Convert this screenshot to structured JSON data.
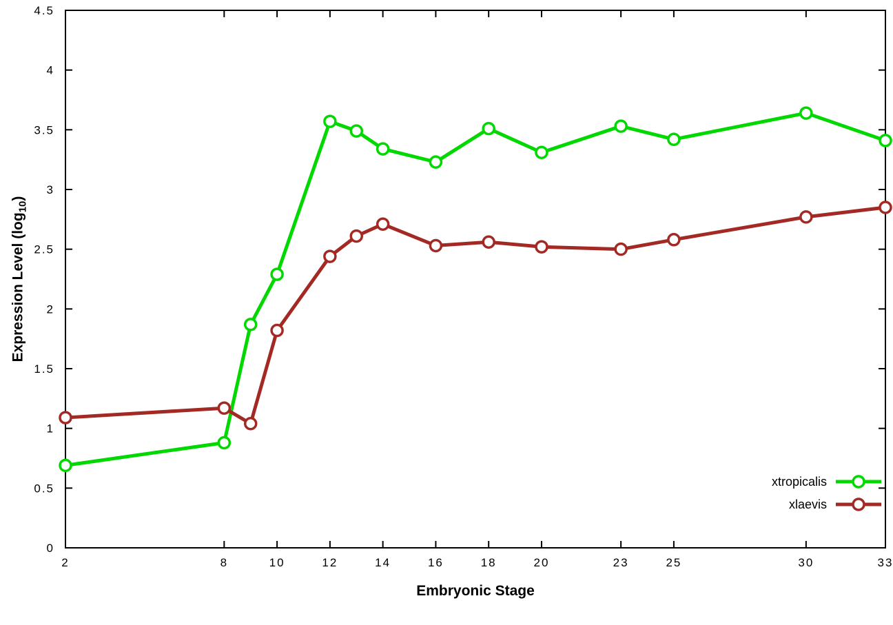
{
  "chart_data": {
    "type": "line",
    "title": "",
    "xlabel": "Embryonic Stage",
    "ylabel_main": "Expression Level (log",
    "ylabel_sub": "10",
    "ylabel_close": ")",
    "x": [
      2,
      8,
      9,
      10,
      12,
      13,
      14,
      16,
      18,
      20,
      23,
      25,
      30,
      33
    ],
    "series": [
      {
        "name": "xtropicalis",
        "color": "#00d800",
        "values": [
          0.69,
          0.88,
          1.87,
          2.29,
          3.57,
          3.49,
          3.34,
          3.23,
          3.51,
          3.31,
          3.53,
          3.42,
          3.64,
          3.41
        ]
      },
      {
        "name": "xlaevis",
        "color": "#a32a24",
        "values": [
          1.09,
          1.17,
          1.04,
          1.82,
          2.44,
          2.61,
          2.71,
          2.53,
          2.56,
          2.52,
          2.5,
          2.58,
          2.77,
          2.85
        ]
      }
    ],
    "xlim": [
      2,
      33
    ],
    "ylim": [
      0,
      4.5
    ],
    "xticks": [
      2,
      8,
      10,
      12,
      14,
      16,
      18,
      20,
      23,
      25,
      30,
      33
    ],
    "yticks": [
      0,
      0.5,
      1,
      1.5,
      2,
      2.5,
      3,
      3.5,
      4,
      4.5
    ],
    "ytick_labels": [
      "0",
      "0.5",
      "1",
      "1.5",
      "2",
      "2.5",
      "3",
      "3.5",
      "4",
      "4.5"
    ],
    "grid": false,
    "legend_position": "bottom-right",
    "axis_color": "#000000",
    "background": "#ffffff",
    "marker": "open-circle"
  }
}
